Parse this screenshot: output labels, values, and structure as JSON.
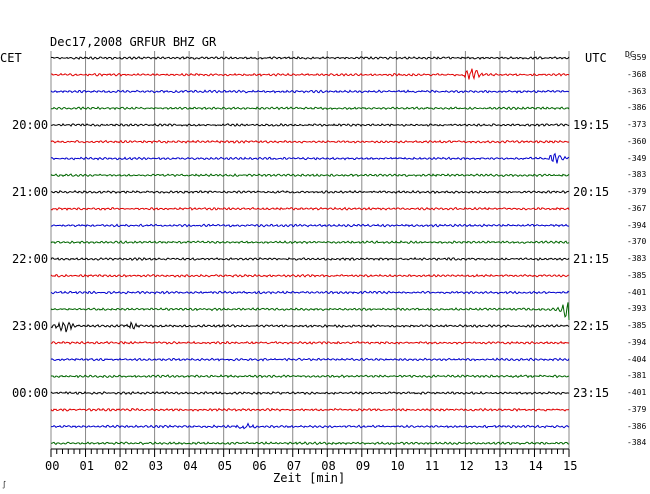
{
  "header": {
    "title": "Dec17,2008   GRFUR BHZ GR",
    "left_timezone": "CET",
    "right_timezone": "UTC",
    "offset_header": "DC"
  },
  "footer": {
    "corner_mark": "∫"
  },
  "chart_data": {
    "type": "line",
    "title": "Dec17,2008   GRFUR BHZ GR",
    "station": "GRFUR",
    "channel": "BHZ",
    "network": "GR",
    "date": "Dec17,2008",
    "xlabel": "Zeit [min]",
    "ylabel": "",
    "xlim": [
      0,
      15
    ],
    "x_ticks": [
      "00",
      "01",
      "02",
      "03",
      "04",
      "05",
      "06",
      "07",
      "08",
      "09",
      "10",
      "11",
      "12",
      "13",
      "14",
      "15"
    ],
    "grid": true,
    "left_hour_labels": [
      {
        "trace": 4,
        "label": "20:00"
      },
      {
        "trace": 8,
        "label": "21:00"
      },
      {
        "trace": 12,
        "label": "22:00"
      },
      {
        "trace": 16,
        "label": "23:00"
      },
      {
        "trace": 20,
        "label": "00:00"
      }
    ],
    "right_hour_labels": [
      {
        "trace": 4,
        "label": "19:15"
      },
      {
        "trace": 8,
        "label": "20:15"
      },
      {
        "trace": 12,
        "label": "21:15"
      },
      {
        "trace": 16,
        "label": "22:15"
      },
      {
        "trace": 20,
        "label": "23:15"
      }
    ],
    "trace_colors": [
      "#000000",
      "#e00000",
      "#0000cc",
      "#006600"
    ],
    "traces": [
      {
        "index": 0,
        "color": "#000000",
        "dc_offset": -359
      },
      {
        "index": 1,
        "color": "#e00000",
        "dc_offset": -368,
        "events": [
          {
            "minute": 12.2,
            "amplitude": 4
          }
        ]
      },
      {
        "index": 2,
        "color": "#0000cc",
        "dc_offset": -363
      },
      {
        "index": 3,
        "color": "#006600",
        "dc_offset": -386
      },
      {
        "index": 4,
        "color": "#000000",
        "dc_offset": -373
      },
      {
        "index": 5,
        "color": "#e00000",
        "dc_offset": -360
      },
      {
        "index": 6,
        "color": "#0000cc",
        "dc_offset": -349,
        "events": [
          {
            "minute": 14.6,
            "amplitude": 4
          }
        ]
      },
      {
        "index": 7,
        "color": "#006600",
        "dc_offset": -383
      },
      {
        "index": 8,
        "color": "#000000",
        "dc_offset": -379
      },
      {
        "index": 9,
        "color": "#e00000",
        "dc_offset": -367
      },
      {
        "index": 10,
        "color": "#0000cc",
        "dc_offset": -394
      },
      {
        "index": 11,
        "color": "#006600",
        "dc_offset": -370
      },
      {
        "index": 12,
        "color": "#000000",
        "dc_offset": -383
      },
      {
        "index": 13,
        "color": "#e00000",
        "dc_offset": -385
      },
      {
        "index": 14,
        "color": "#0000cc",
        "dc_offset": -401
      },
      {
        "index": 15,
        "color": "#006600",
        "dc_offset": -393,
        "events": [
          {
            "minute": 15.0,
            "amplitude": 10
          }
        ]
      },
      {
        "index": 16,
        "color": "#000000",
        "dc_offset": -385,
        "events": [
          {
            "minute": 0.4,
            "amplitude": 4
          },
          {
            "minute": 2.3,
            "amplitude": 2.5
          }
        ]
      },
      {
        "index": 17,
        "color": "#e00000",
        "dc_offset": -394
      },
      {
        "index": 18,
        "color": "#0000cc",
        "dc_offset": -404
      },
      {
        "index": 19,
        "color": "#006600",
        "dc_offset": -381
      },
      {
        "index": 20,
        "color": "#000000",
        "dc_offset": -401
      },
      {
        "index": 21,
        "color": "#e00000",
        "dc_offset": -379
      },
      {
        "index": 22,
        "color": "#0000cc",
        "dc_offset": -386,
        "events": [
          {
            "minute": 5.6,
            "amplitude": 2.5
          }
        ]
      },
      {
        "index": 23,
        "color": "#006600",
        "dc_offset": -384
      }
    ]
  }
}
